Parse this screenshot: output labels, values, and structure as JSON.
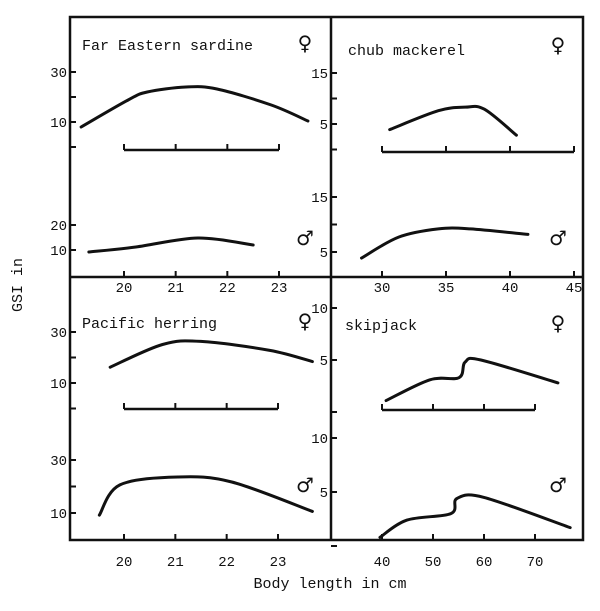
{
  "chart_data": {
    "type": "line",
    "ylabel": "GSI in",
    "xlabel": "Body length in cm",
    "female_symbol": "♀",
    "male_symbol": "♂",
    "panels": [
      {
        "title": "Far Eastern sardine",
        "x_ticks": [
          20,
          21,
          22,
          23
        ],
        "x_tick_labels": [
          "20",
          "21",
          "22",
          "23"
        ],
        "female": {
          "y_ticks": [
            0,
            10,
            20,
            30
          ],
          "y_tick_labels": [
            "",
            "10",
            "",
            "30"
          ],
          "x": [
            19.17,
            20.08,
            20.45,
            21.2,
            21.8,
            22.85,
            23.56
          ],
          "y": [
            8.0,
            18.8,
            22.0,
            24.0,
            23.2,
            16.8,
            10.4
          ]
        },
        "male": {
          "y_ticks": [
            10,
            20
          ],
          "y_tick_labels": [
            "10",
            "20"
          ],
          "x": [
            19.32,
            20.23,
            21.43,
            22.5
          ],
          "y": [
            9.2,
            11.2,
            14.8,
            12.0
          ]
        }
      },
      {
        "title": "chub mackerel",
        "x_ticks": [
          30,
          35,
          40,
          45
        ],
        "x_tick_labels": [
          "30",
          "35",
          "40",
          "45"
        ],
        "female": {
          "y_ticks": [
            0,
            5,
            10,
            15
          ],
          "y_tick_labels": [
            "",
            "5",
            "",
            "15"
          ],
          "x": [
            30.6,
            34.4,
            36.5,
            38.0,
            40.5
          ],
          "y": [
            3.9,
            7.6,
            8.3,
            7.9,
            2.8
          ]
        },
        "male": {
          "y_ticks": [
            5,
            10,
            15
          ],
          "y_tick_labels": [
            "5",
            "",
            "15"
          ],
          "x": [
            28.4,
            31.3,
            34.4,
            36.9,
            41.4
          ],
          "y": [
            3.9,
            7.7,
            9.2,
            9.2,
            8.2
          ]
        }
      },
      {
        "title": "Pacific herring",
        "x_ticks": [
          20,
          21,
          22,
          23
        ],
        "x_tick_labels": [
          "20",
          "21",
          "22",
          "23"
        ],
        "female": {
          "y_ticks": [
            0,
            10,
            20,
            30
          ],
          "y_tick_labels": [
            "",
            "10",
            "",
            "30"
          ],
          "x": [
            19.73,
            20.75,
            21.5,
            22.84,
            23.67
          ],
          "y": [
            16.2,
            25.1,
            26.3,
            22.8,
            18.4
          ]
        },
        "male": {
          "y_ticks": [
            10,
            20,
            30
          ],
          "y_tick_labels": [
            "10",
            "",
            "30"
          ],
          "x": [
            19.52,
            19.92,
            21.05,
            22.1,
            23.67
          ],
          "y": [
            9.2,
            20.6,
            23.6,
            21.7,
            10.6
          ]
        }
      },
      {
        "title": "skipjack",
        "x_ticks": [
          40,
          50,
          60,
          70
        ],
        "x_tick_labels": [
          "40",
          "50",
          "60",
          "70"
        ],
        "female": {
          "y_ticks": [
            0,
            5,
            10
          ],
          "y_tick_labels": [
            "",
            "5",
            "10"
          ],
          "x": [
            40.8,
            49.4,
            55.1,
            56.3,
            59.4,
            74.5
          ],
          "y": [
            1.1,
            3.1,
            3.3,
            4.8,
            5.0,
            2.8
          ]
        },
        "male": {
          "y_ticks": [
            0,
            5,
            10
          ],
          "y_tick_labels": [
            "",
            "5",
            "10"
          ],
          "x": [
            39.6,
            44.9,
            53.5,
            54.7,
            60.0,
            76.9
          ],
          "y": [
            0.8,
            2.4,
            3.0,
            4.4,
            4.5,
            1.7
          ]
        }
      }
    ]
  }
}
